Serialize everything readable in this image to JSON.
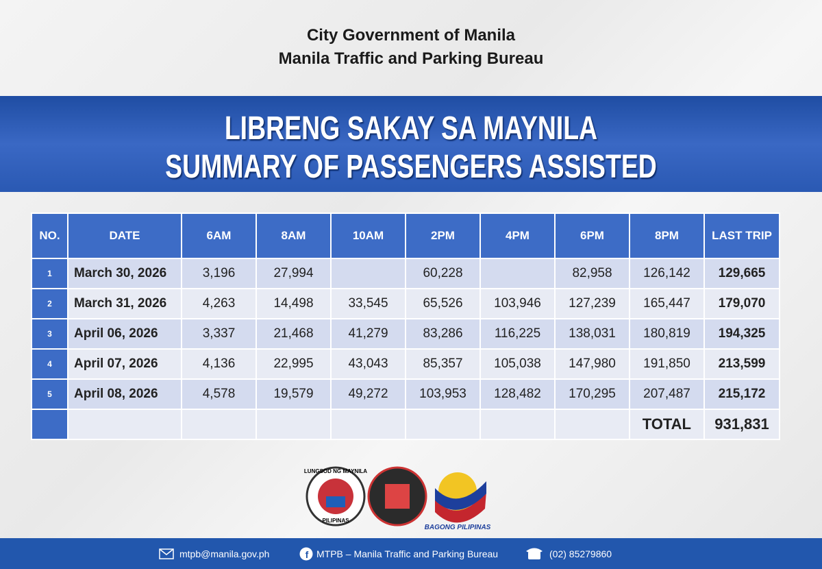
{
  "header": {
    "line1": "City Government of Manila",
    "line2": "Manila Traffic and Parking Bureau"
  },
  "banner": {
    "line1": "LIBRENG SAKAY SA MAYNILA",
    "line2": "SUMMARY OF PASSENGERS ASSISTED"
  },
  "table": {
    "columns": [
      "NO.",
      "DATE",
      "6AM",
      "8AM",
      "10AM",
      "2PM",
      "4PM",
      "6PM",
      "8PM",
      "LAST TRIP"
    ],
    "rows": [
      [
        "1",
        "March 30, 2026",
        "3,196",
        "27,994",
        null,
        "60,228",
        null,
        "82,958",
        "126,142",
        "129,665"
      ],
      [
        "2",
        "March 31, 2026",
        "4,263",
        "14,498",
        "33,545",
        "65,526",
        "103,946",
        "127,239",
        "165,447",
        "179,070"
      ],
      [
        "3",
        "April 06, 2026",
        "3,337",
        "21,468",
        "41,279",
        "83,286",
        "116,225",
        "138,031",
        "180,819",
        "194,325"
      ],
      [
        "4",
        "April 07, 2026",
        "4,136",
        "22,995",
        "43,043",
        "85,357",
        "105,038",
        "147,980",
        "191,850",
        "213,599"
      ],
      [
        "5",
        "April 08, 2026",
        "4,578",
        "19,579",
        "49,272",
        "103,953",
        "128,482",
        "170,295",
        "207,487",
        "215,172"
      ]
    ],
    "total": {
      "label": "TOTAL",
      "value": "931,831"
    }
  },
  "logos": {
    "manila_top": "LUNGSOD NG MAYNILA",
    "manila_bottom": "PILIPINAS",
    "bagong": "BAGONG PILIPINAS"
  },
  "footer": {
    "email": "mtpb@manila.gov.ph",
    "facebook": "MTPB – Manila Traffic and Parking Bureau",
    "phone": "(02) 85279860"
  }
}
